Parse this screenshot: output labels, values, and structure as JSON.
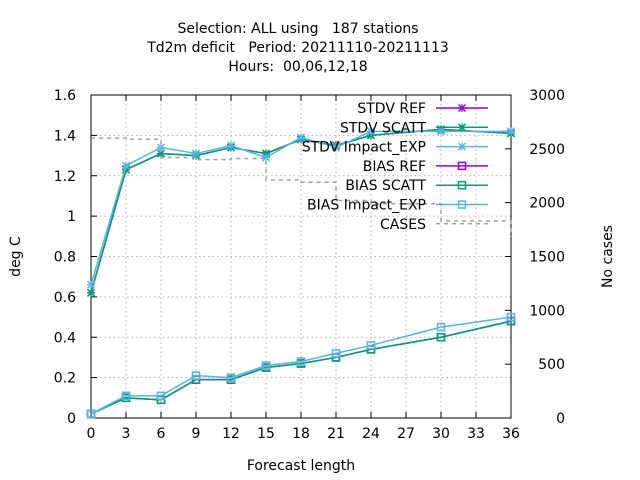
{
  "chart_data": {
    "type": "line",
    "title_lines": [
      "Selection: ALL using   187 stations",
      "Td2m deficit   Period: 20211110-20211113",
      "Hours:  00,06,12,18"
    ],
    "xlabel": "Forecast length",
    "ylabel": "deg C",
    "y2label": "No cases",
    "xlim": [
      0,
      36
    ],
    "ylim": [
      0,
      1.6
    ],
    "y2lim": [
      0,
      3000
    ],
    "xticks": [
      "0",
      "3",
      "6",
      "9",
      "12",
      "15",
      "18",
      "21",
      "24",
      "27",
      "30",
      "33",
      "36"
    ],
    "yticks": [
      "0",
      "0.2",
      "0.4",
      "0.6",
      "0.8",
      "1",
      "1.2",
      "1.4",
      "1.6"
    ],
    "y2ticks": [
      "0",
      "500",
      "1000",
      "1500",
      "2000",
      "2500",
      "3000"
    ],
    "grid": true,
    "legend_position": "top-right",
    "x": [
      0,
      3,
      6,
      9,
      12,
      15,
      18,
      21,
      24,
      30,
      36
    ],
    "series": [
      {
        "name": "STDV REF",
        "axis": "y1",
        "color": "#9400d3",
        "marker": "x",
        "values": [
          0.62,
          1.23,
          1.31,
          1.3,
          1.34,
          1.31,
          1.38,
          1.35,
          1.4,
          1.43,
          1.41
        ]
      },
      {
        "name": "STDV SCATT",
        "axis": "y1",
        "color": "#009e73",
        "marker": "x",
        "values": [
          0.62,
          1.23,
          1.31,
          1.3,
          1.34,
          1.31,
          1.38,
          1.35,
          1.4,
          1.43,
          1.41
        ]
      },
      {
        "name": "STDV Impact_EXP",
        "axis": "y1",
        "color": "#56b4e9",
        "marker": "x",
        "values": [
          0.66,
          1.25,
          1.34,
          1.31,
          1.35,
          1.29,
          1.39,
          1.34,
          1.42,
          1.42,
          1.42
        ]
      },
      {
        "name": "BIAS REF",
        "axis": "y1",
        "color": "#9400d3",
        "marker": "square",
        "values": [
          0.02,
          0.1,
          0.09,
          0.19,
          0.19,
          0.25,
          0.27,
          0.3,
          0.34,
          0.4,
          0.48
        ]
      },
      {
        "name": "BIAS SCATT",
        "axis": "y1",
        "color": "#009e73",
        "marker": "square",
        "values": [
          0.02,
          0.1,
          0.09,
          0.19,
          0.19,
          0.25,
          0.27,
          0.3,
          0.34,
          0.4,
          0.48
        ]
      },
      {
        "name": "BIAS Impact_EXP",
        "axis": "y1",
        "color": "#56b4e9",
        "marker": "square",
        "values": [
          0.02,
          0.11,
          0.11,
          0.21,
          0.2,
          0.26,
          0.28,
          0.32,
          0.36,
          0.45,
          0.5
        ]
      },
      {
        "name": "CASES",
        "axis": "y2",
        "color": "#a0a0a0",
        "marker": "none",
        "dashed": true,
        "step": true,
        "values": [
          2600,
          2590,
          2420,
          2400,
          2410,
          2210,
          2190,
          2020,
          1990,
          1830,
          1680
        ]
      }
    ]
  }
}
